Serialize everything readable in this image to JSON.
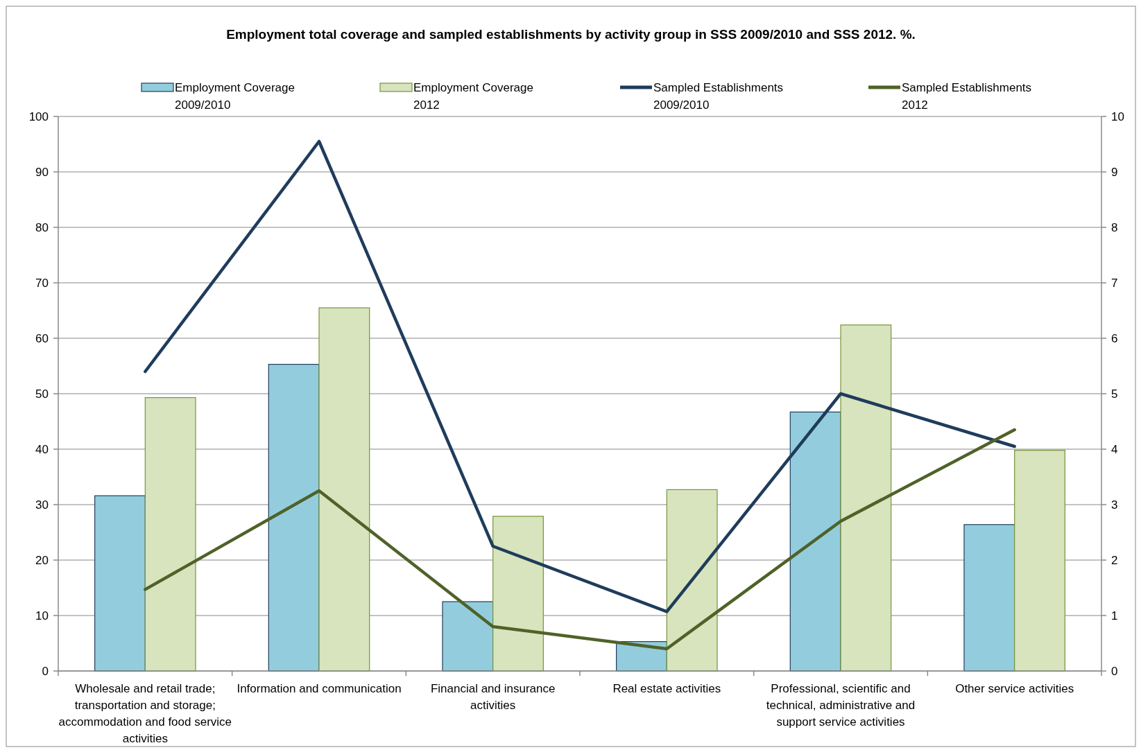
{
  "chart_data": {
    "type": "bar",
    "title": "Employment total coverage and sampled establishments by activity group in SSS 2009/2010 and SSS 2012. %.",
    "categories": [
      "Wholesale and retail trade; transportation and storage; accommodation and food service activities",
      "Information and communication",
      "Financial and insurance activities",
      "Real estate activities",
      "Professional, scientific and technical, administrative and support service activities",
      "Other service activities"
    ],
    "series": [
      {
        "name": "Employment Coverage 2009/2010",
        "color": "#93cddd",
        "values": [
          31.6,
          55.3,
          12.5,
          5.3,
          46.7,
          26.4
        ]
      },
      {
        "name": "Employment Coverage 2012",
        "color": "#d7e4bd",
        "values": [
          49.3,
          65.5,
          27.9,
          32.7,
          62.4,
          39.8
        ]
      },
      {
        "name": "Sampled Establishments 2009/2010",
        "type": "line",
        "axis": "y2",
        "color": "#1f3c5c",
        "values": [
          5.4,
          9.55,
          2.25,
          1.07,
          5.0,
          4.05
        ]
      },
      {
        "name": "Sampled Establishments 2012",
        "type": "line",
        "axis": "y2",
        "color": "#4f6228",
        "values": [
          1.47,
          3.25,
          0.8,
          0.4,
          2.7,
          4.35
        ]
      }
    ],
    "ylim": [
      0,
      100
    ],
    "yticks": [
      0,
      10,
      20,
      30,
      40,
      50,
      60,
      70,
      80,
      90,
      100
    ],
    "y2lim": [
      0,
      10
    ],
    "y2ticks": [
      0,
      1,
      2,
      3,
      4,
      5,
      6,
      7,
      8,
      9,
      10
    ],
    "grid": "y",
    "legend": "top",
    "marker": "none",
    "line_style": "solid"
  }
}
